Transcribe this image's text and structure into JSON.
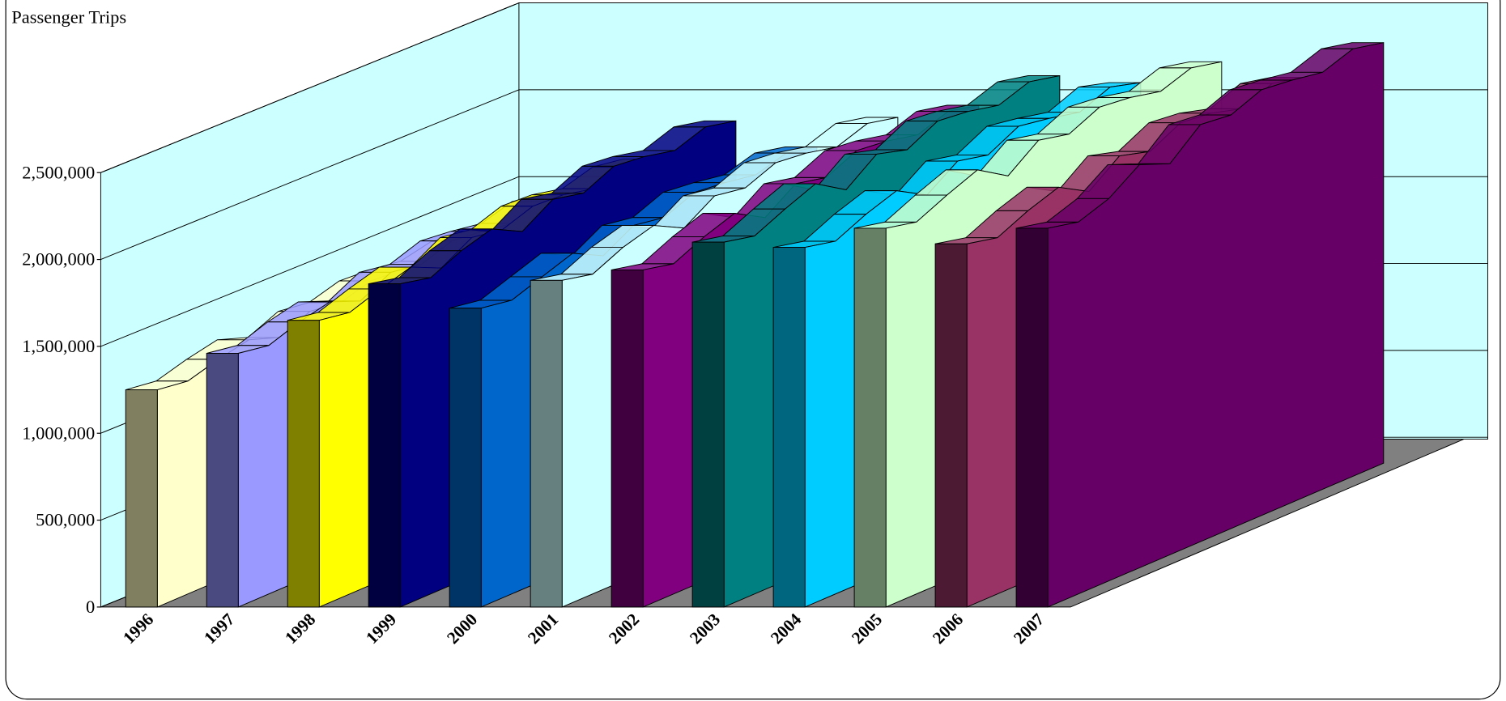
{
  "chart_data": {
    "type": "area3d",
    "title": "Passenger Trips",
    "ylim": [
      0,
      2500000
    ],
    "yticks": [
      0,
      {
        "value": 500000,
        "label": "500,000"
      },
      {
        "value": 1000000,
        "label": "1,000,000"
      },
      {
        "value": 1500000,
        "label": "1,500,000"
      },
      {
        "value": 2000000,
        "label": "2,000,000"
      },
      {
        "value": 2500000,
        "label": "2,500,000"
      }
    ],
    "grid": true,
    "series": [
      {
        "name": "1996",
        "color": "#ffffcc",
        "cap_color": "#808060",
        "values": [
          1250000,
          1225000,
          1275000,
          1312000,
          1250000,
          1325000,
          1300000,
          1350000,
          1338000,
          1312000,
          1350000,
          1325000
        ]
      },
      {
        "name": "1997",
        "color": "#9999ff",
        "cap_color": "#4a4a80",
        "values": [
          1460000,
          1430000,
          1490000,
          1530000,
          1460000,
          1550000,
          1520000,
          1580000,
          1560000,
          1530000,
          1580000,
          1550000
        ]
      },
      {
        "name": "1998",
        "color": "#ffff00",
        "cap_color": "#808000",
        "values": [
          1650000,
          1620000,
          1680000,
          1730000,
          1650000,
          1750000,
          1720000,
          1780000,
          1770000,
          1730000,
          1780000,
          1750000
        ]
      },
      {
        "name": "1999",
        "color": "#000080",
        "cap_color": "#000040",
        "values": [
          1860000,
          1820000,
          1900000,
          1950000,
          1860000,
          1970000,
          1930000,
          2010000,
          1990000,
          1950000,
          2010000,
          1970000
        ]
      },
      {
        "name": "2000",
        "color": "#0066cc",
        "cap_color": "#003366",
        "values": [
          1720000,
          1690000,
          1750000,
          1810000,
          1720000,
          1820000,
          1790000,
          1860000,
          1840000,
          1810000,
          1860000,
          1820000
        ]
      },
      {
        "name": "2001",
        "color": "#ccffff",
        "cap_color": "#668080",
        "values": [
          1880000,
          1840000,
          1920000,
          1970000,
          1880000,
          1990000,
          1960000,
          2030000,
          2010000,
          1970000,
          2030000,
          1990000
        ]
      },
      {
        "name": "2002",
        "color": "#800080",
        "cap_color": "#400040",
        "values": [
          1940000,
          1900000,
          1980000,
          2040000,
          1940000,
          2060000,
          2020000,
          2100000,
          2080000,
          2040000,
          2100000,
          2060000
        ]
      },
      {
        "name": "2003",
        "color": "#008080",
        "cap_color": "#004040",
        "values": [
          2100000,
          2060000,
          2140000,
          2210000,
          2100000,
          2230000,
          2180000,
          2270000,
          2250000,
          2210000,
          2270000,
          2230000
        ]
      },
      {
        "name": "2004",
        "color": "#00ccff",
        "cap_color": "#006680",
        "values": [
          2070000,
          2030000,
          2110000,
          2170000,
          2070000,
          2190000,
          2150000,
          2240000,
          2210000,
          2170000,
          2240000,
          2190000
        ]
      },
      {
        "name": "2005",
        "color": "#ccffcc",
        "cap_color": "#668066",
        "values": [
          2180000,
          2140000,
          2220000,
          2290000,
          2180000,
          2310000,
          2270000,
          2350000,
          2330000,
          2290000,
          2350000,
          2310000
        ]
      },
      {
        "name": "2006",
        "color": "#993366",
        "cap_color": "#4d1a33",
        "values": [
          2090000,
          2050000,
          2130000,
          2190000,
          2090000,
          2220000,
          2170000,
          2260000,
          2240000,
          2190000,
          2260000,
          2220000
        ]
      },
      {
        "name": "2007",
        "color": "#660066",
        "cap_color": "#330033",
        "values": [
          2180000,
          2140000,
          2200000,
          2320000,
          2250000,
          2400000,
          2380000,
          2450000,
          2430000,
          2400000,
          2460000,
          2420000
        ]
      }
    ]
  }
}
